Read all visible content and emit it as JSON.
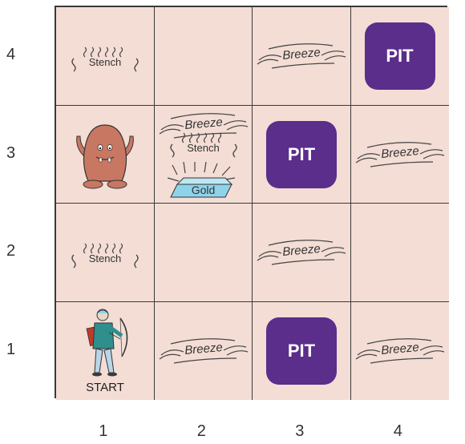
{
  "rows": [
    "4",
    "3",
    "2",
    "1"
  ],
  "columns": [
    "1",
    "2",
    "3",
    "4"
  ],
  "labels": {
    "pit": "PIT",
    "breeze": "Breeze",
    "stench": "Stench",
    "gold": "Gold",
    "start": "START"
  },
  "grid": [
    {
      "row": 4,
      "col": 1,
      "items": [
        "stench"
      ]
    },
    {
      "row": 4,
      "col": 2,
      "items": []
    },
    {
      "row": 4,
      "col": 3,
      "items": [
        "breeze"
      ]
    },
    {
      "row": 4,
      "col": 4,
      "items": [
        "pit"
      ]
    },
    {
      "row": 3,
      "col": 1,
      "items": [
        "wumpus"
      ]
    },
    {
      "row": 3,
      "col": 2,
      "items": [
        "breeze",
        "stench",
        "gold"
      ]
    },
    {
      "row": 3,
      "col": 3,
      "items": [
        "pit"
      ]
    },
    {
      "row": 3,
      "col": 4,
      "items": [
        "breeze"
      ]
    },
    {
      "row": 2,
      "col": 1,
      "items": [
        "stench"
      ]
    },
    {
      "row": 2,
      "col": 2,
      "items": []
    },
    {
      "row": 2,
      "col": 3,
      "items": [
        "breeze"
      ]
    },
    {
      "row": 2,
      "col": 4,
      "items": []
    },
    {
      "row": 1,
      "col": 1,
      "items": [
        "agent",
        "start"
      ]
    },
    {
      "row": 1,
      "col": 2,
      "items": [
        "breeze"
      ]
    },
    {
      "row": 1,
      "col": 3,
      "items": [
        "pit"
      ]
    },
    {
      "row": 1,
      "col": 4,
      "items": [
        "breeze"
      ]
    }
  ],
  "colors": {
    "cell_background": "#f3ddd5",
    "grid_line": "#3a3a3a",
    "pit": "#5a2e8a",
    "pit_text": "#ffffff",
    "wumpus": "#c87762",
    "gold": "#8fd3ea",
    "agent_coat": "#2f8f8c"
  },
  "icons": {
    "wumpus": "wumpus-monster-icon",
    "agent": "archer-agent-icon",
    "gold": "gold-bar-icon",
    "breeze": "wind-lines-icon",
    "stench": "stench-squiggles-icon"
  }
}
